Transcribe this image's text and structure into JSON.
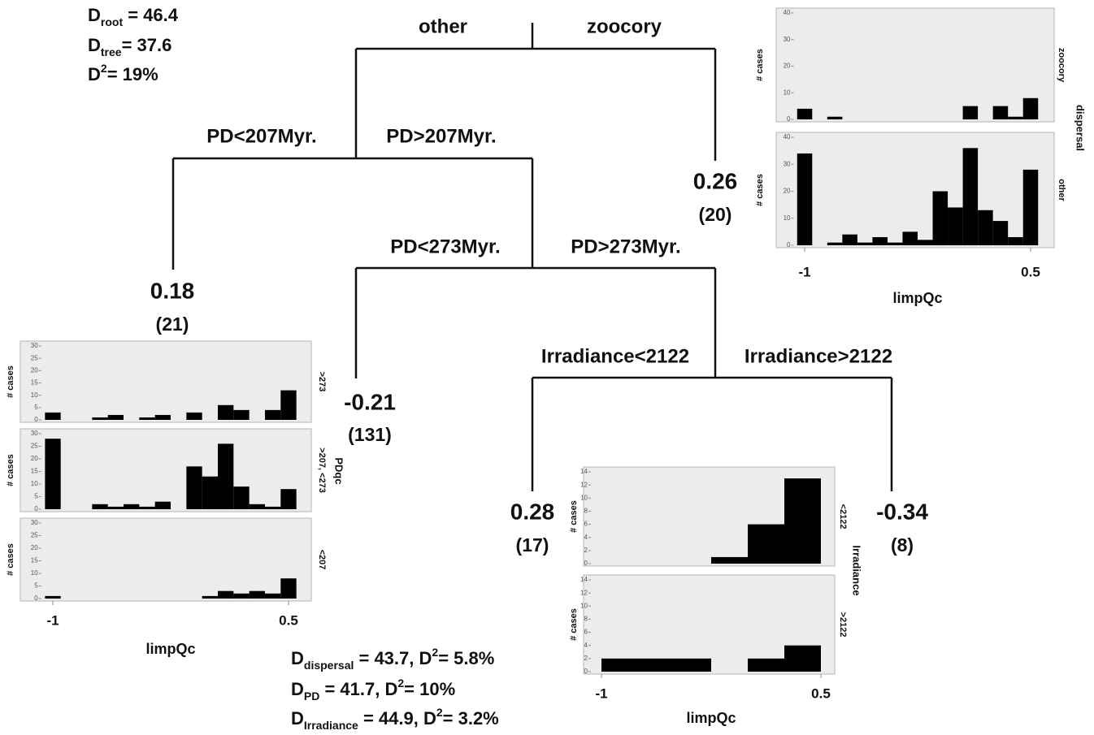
{
  "stats": [
    [
      {
        "t": "D"
      },
      {
        "sub": "root"
      },
      {
        "t": " = 46.4"
      }
    ],
    [
      {
        "t": "D"
      },
      {
        "sub": "tree"
      },
      {
        "t": "= 37.6"
      }
    ],
    [
      {
        "t": "D"
      },
      {
        "sup": "2"
      },
      {
        "t": "= 19%"
      }
    ]
  ],
  "splits": [
    "other",
    "zoocory",
    "PD<207Myr.",
    "PD>207Myr.",
    "PD<273Myr.",
    "PD>273Myr.",
    "Irradiance<2122",
    "Irradiance>2122"
  ],
  "leaves": [
    {
      "value": "0.26",
      "cases": "(20)"
    },
    {
      "value": "0.18",
      "cases": "(21)"
    },
    {
      "value": "-0.21",
      "cases": "(131)"
    },
    {
      "value": "0.28",
      "cases": "(17)"
    },
    {
      "value": "-0.34",
      "cases": "(8)"
    }
  ],
  "importance": [
    [
      {
        "t": "D"
      },
      {
        "sub": "dispersal"
      },
      {
        "t": " = 43.7, D"
      },
      {
        "sup": "2"
      },
      {
        "t": "= 5.8%"
      }
    ],
    [
      {
        "t": "D"
      },
      {
        "sub": "PD"
      },
      {
        "t": " = 41.7, D"
      },
      {
        "sup": "2"
      },
      {
        "t": "= 10%"
      }
    ],
    [
      {
        "t": "D"
      },
      {
        "sub": "Irradiance"
      },
      {
        "t": " = 44.9, D"
      },
      {
        "sup": "2"
      },
      {
        "t": "= 3.2%"
      }
    ]
  ],
  "histograms": [
    {
      "factor": "dispersal",
      "x_label": "limpQc",
      "y_label": "# cases",
      "xlim": [
        -1.1,
        0.6
      ],
      "xticks": [
        -1,
        0.5
      ],
      "ylim": [
        0,
        40
      ],
      "yticks": [
        0,
        10,
        20,
        30,
        40
      ],
      "bins": [
        -1.05,
        -0.95,
        -0.85,
        -0.75,
        -0.65,
        -0.55,
        -0.45,
        -0.35,
        -0.25,
        -0.15,
        -0.05,
        0.05,
        0.15,
        0.25,
        0.35,
        0.45,
        0.55
      ],
      "panels": [
        {
          "label": "zoocory",
          "counts": [
            4,
            0,
            1,
            0,
            0,
            0,
            0,
            0,
            0,
            0,
            0,
            5,
            0,
            5,
            1,
            8
          ]
        },
        {
          "label": "other",
          "counts": [
            34,
            0,
            1,
            4,
            1,
            3,
            1,
            5,
            2,
            20,
            14,
            36,
            13,
            9,
            3,
            28
          ]
        }
      ]
    },
    {
      "factor": "PDqc",
      "x_label": "limpQc",
      "y_label": "# cases",
      "xlim": [
        -1.1,
        0.6
      ],
      "xticks": [
        -1,
        0.5
      ],
      "ylim": [
        0,
        30
      ],
      "yticks": [
        0,
        5,
        10,
        15,
        20,
        25,
        30
      ],
      "bins": [
        -1.05,
        -0.95,
        -0.85,
        -0.75,
        -0.65,
        -0.55,
        -0.45,
        -0.35,
        -0.25,
        -0.15,
        -0.05,
        0.05,
        0.15,
        0.25,
        0.35,
        0.45,
        0.55
      ],
      "panels": [
        {
          "label": ">273",
          "counts": [
            3,
            0,
            0,
            1,
            2,
            0,
            1,
            2,
            0,
            3,
            0,
            6,
            4,
            0,
            4,
            12
          ]
        },
        {
          "label": ">207, <273",
          "counts": [
            28,
            0,
            0,
            2,
            1,
            2,
            1,
            3,
            0,
            17,
            13,
            26,
            9,
            2,
            1,
            8
          ]
        },
        {
          "label": "<207",
          "counts": [
            1,
            0,
            0,
            0,
            0,
            0,
            0,
            0,
            0,
            0,
            1,
            3,
            2,
            3,
            2,
            8
          ]
        }
      ]
    },
    {
      "factor": "Irradiance",
      "x_label": "limpQc",
      "y_label": "# cases",
      "xlim": [
        -1.1,
        0.6
      ],
      "xticks": [
        -1,
        0.5
      ],
      "ylim": [
        0,
        14
      ],
      "yticks": [
        0,
        2,
        4,
        6,
        8,
        10,
        12,
        14
      ],
      "bins": [
        -1,
        -0.75,
        -0.5,
        -0.25,
        0,
        0.25,
        0.5
      ],
      "panels": [
        {
          "label": "<2122",
          "counts": [
            0,
            0,
            0,
            1,
            6,
            13
          ]
        },
        {
          "label": ">2122",
          "counts": [
            2,
            2,
            2,
            0,
            2,
            4
          ]
        }
      ]
    }
  ]
}
